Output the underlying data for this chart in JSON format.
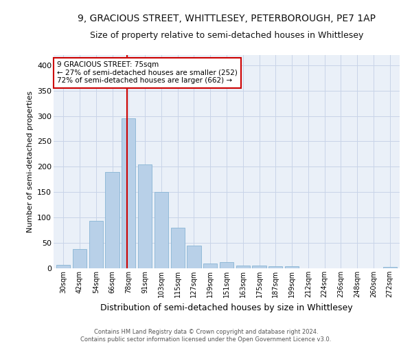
{
  "title": "9, GRACIOUS STREET, WHITTLESEY, PETERBOROUGH, PE7 1AP",
  "subtitle": "Size of property relative to semi-detached houses in Whittlesey",
  "xlabel": "Distribution of semi-detached houses by size in Whittlesey",
  "ylabel": "Number of semi-detached properties",
  "categories": [
    "30sqm",
    "42sqm",
    "54sqm",
    "66sqm",
    "78sqm",
    "91sqm",
    "103sqm",
    "115sqm",
    "127sqm",
    "139sqm",
    "151sqm",
    "163sqm",
    "175sqm",
    "187sqm",
    "199sqm",
    "212sqm",
    "224sqm",
    "236sqm",
    "248sqm",
    "260sqm",
    "272sqm"
  ],
  "values": [
    7,
    38,
    93,
    190,
    295,
    205,
    151,
    80,
    45,
    9,
    12,
    5,
    6,
    4,
    4,
    0,
    0,
    0,
    0,
    0,
    3
  ],
  "bar_color": "#b8d0e8",
  "bar_edge_color": "#88b4d4",
  "grid_color": "#c8d4e8",
  "bg_color": "#eaf0f8",
  "vline_color": "#cc0000",
  "vline_x": 4.42,
  "annotation_title": "9 GRACIOUS STREET: 75sqm",
  "annotation_line1": "← 27% of semi-detached houses are smaller (252)",
  "annotation_line2": "72% of semi-detached houses are larger (662) →",
  "annotation_box_color": "#cc0000",
  "footer_line1": "Contains HM Land Registry data © Crown copyright and database right 2024.",
  "footer_line2": "Contains public sector information licensed under the Open Government Licence v3.0.",
  "ylim": [
    0,
    420
  ],
  "yticks": [
    0,
    50,
    100,
    150,
    200,
    250,
    300,
    350,
    400
  ],
  "title_fontsize": 10,
  "subtitle_fontsize": 9,
  "ylabel_fontsize": 8,
  "xlabel_fontsize": 9
}
